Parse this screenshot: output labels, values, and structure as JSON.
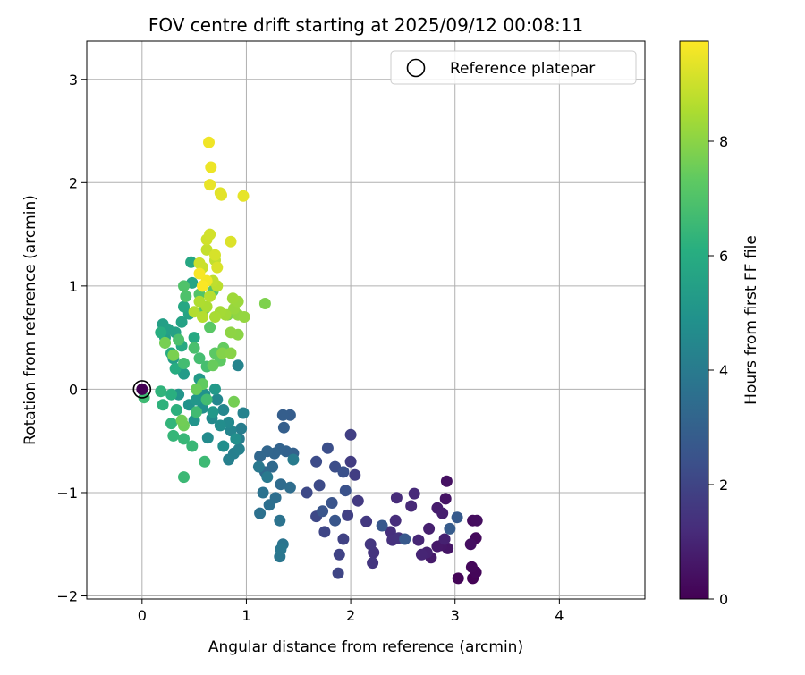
{
  "chart_data": {
    "type": "scatter",
    "title": "FOV centre drift starting at 2025/09/12 00:08:11",
    "xlabel": "Angular distance from reference (arcmin)",
    "ylabel": "Rotation from reference (arcmin)",
    "xlim": [
      -0.53,
      4.82
    ],
    "ylim": [
      -2.03,
      3.37
    ],
    "xticks": [
      0,
      1,
      2,
      3,
      4
    ],
    "yticks": [
      -2,
      -1,
      0,
      1,
      2,
      3
    ],
    "grid": true,
    "legend": {
      "placement": "top-right",
      "entries": [
        "Reference platepar"
      ]
    },
    "reference_point": {
      "x": 0,
      "y": 0,
      "label": "Reference platepar"
    },
    "colorbar": {
      "label": "Hours from first FF file",
      "colormap": "viridis",
      "range": [
        0,
        9.75
      ],
      "ticks": [
        0,
        2,
        4,
        6,
        8
      ]
    },
    "points": [
      {
        "x": 3.17,
        "y": -1.83,
        "c": 0.05
      },
      {
        "x": 3.03,
        "y": -1.83,
        "c": 0.1
      },
      {
        "x": 3.2,
        "y": -1.77,
        "c": 0.15
      },
      {
        "x": 3.16,
        "y": -1.72,
        "c": 0.2
      },
      {
        "x": 3.2,
        "y": -1.44,
        "c": 0.25
      },
      {
        "x": 3.17,
        "y": -1.27,
        "c": 0.3
      },
      {
        "x": 3.21,
        "y": -1.27,
        "c": 0.35
      },
      {
        "x": 3.15,
        "y": -1.5,
        "c": 0.4
      },
      {
        "x": 2.92,
        "y": -0.89,
        "c": 0.45
      },
      {
        "x": 2.91,
        "y": -1.06,
        "c": 0.5
      },
      {
        "x": 2.93,
        "y": -1.54,
        "c": 0.55
      },
      {
        "x": 2.87,
        "y": -1.51,
        "c": 0.6
      },
      {
        "x": 2.83,
        "y": -1.52,
        "c": 0.65
      },
      {
        "x": 2.77,
        "y": -1.63,
        "c": 0.7
      },
      {
        "x": 2.83,
        "y": -1.15,
        "c": 0.75
      },
      {
        "x": 2.88,
        "y": -1.2,
        "c": 0.8
      },
      {
        "x": 2.75,
        "y": -1.35,
        "c": 0.85
      },
      {
        "x": 2.9,
        "y": -1.45,
        "c": 0.9
      },
      {
        "x": 2.73,
        "y": -1.58,
        "c": 0.95
      },
      {
        "x": 2.68,
        "y": -1.6,
        "c": 1.0
      },
      {
        "x": 2.65,
        "y": -1.46,
        "c": 1.05
      },
      {
        "x": 2.58,
        "y": -1.13,
        "c": 1.1
      },
      {
        "x": 2.61,
        "y": -1.01,
        "c": 1.15
      },
      {
        "x": 2.44,
        "y": -1.05,
        "c": 1.2
      },
      {
        "x": 2.43,
        "y": -1.27,
        "c": 1.25
      },
      {
        "x": 2.38,
        "y": -1.38,
        "c": 1.3
      },
      {
        "x": 2.4,
        "y": -1.46,
        "c": 1.35
      },
      {
        "x": 2.46,
        "y": -1.44,
        "c": 1.4
      },
      {
        "x": 2.22,
        "y": -1.58,
        "c": 1.45
      },
      {
        "x": 2.21,
        "y": -1.68,
        "c": 1.5
      },
      {
        "x": 2.19,
        "y": -1.5,
        "c": 1.55
      },
      {
        "x": 2.15,
        "y": -1.28,
        "c": 1.6
      },
      {
        "x": 2.07,
        "y": -1.08,
        "c": 1.65
      },
      {
        "x": 2.0,
        "y": -0.7,
        "c": 1.7
      },
      {
        "x": 2.04,
        "y": -0.83,
        "c": 1.75
      },
      {
        "x": 2.0,
        "y": -0.44,
        "c": 1.8
      },
      {
        "x": 1.97,
        "y": -1.22,
        "c": 1.85
      },
      {
        "x": 1.93,
        "y": -1.45,
        "c": 1.9
      },
      {
        "x": 1.89,
        "y": -1.6,
        "c": 1.95
      },
      {
        "x": 1.88,
        "y": -1.78,
        "c": 2.0
      },
      {
        "x": 1.75,
        "y": -1.38,
        "c": 2.05
      },
      {
        "x": 1.67,
        "y": -1.23,
        "c": 2.1
      },
      {
        "x": 1.58,
        "y": -1.0,
        "c": 2.15
      },
      {
        "x": 1.7,
        "y": -0.93,
        "c": 2.2
      },
      {
        "x": 1.67,
        "y": -0.7,
        "c": 2.25
      },
      {
        "x": 1.85,
        "y": -0.75,
        "c": 2.3
      },
      {
        "x": 1.78,
        "y": -0.57,
        "c": 2.35
      },
      {
        "x": 1.93,
        "y": -0.8,
        "c": 2.4
      },
      {
        "x": 1.95,
        "y": -0.98,
        "c": 2.45
      },
      {
        "x": 1.82,
        "y": -1.1,
        "c": 2.5
      },
      {
        "x": 1.73,
        "y": -1.18,
        "c": 2.55
      },
      {
        "x": 1.85,
        "y": -1.27,
        "c": 2.6
      },
      {
        "x": 2.3,
        "y": -1.32,
        "c": 2.65
      },
      {
        "x": 2.52,
        "y": -1.45,
        "c": 2.7
      },
      {
        "x": 3.02,
        "y": -1.24,
        "c": 2.75
      },
      {
        "x": 2.95,
        "y": -1.35,
        "c": 2.8
      },
      {
        "x": 1.42,
        "y": -0.25,
        "c": 2.85
      },
      {
        "x": 1.35,
        "y": -0.25,
        "c": 2.9
      },
      {
        "x": 1.36,
        "y": -0.37,
        "c": 2.95
      },
      {
        "x": 1.45,
        "y": -0.62,
        "c": 3.0
      },
      {
        "x": 1.38,
        "y": -0.6,
        "c": 3.05
      },
      {
        "x": 1.32,
        "y": -0.58,
        "c": 3.1
      },
      {
        "x": 1.27,
        "y": -0.62,
        "c": 3.15
      },
      {
        "x": 1.2,
        "y": -0.6,
        "c": 3.2
      },
      {
        "x": 1.13,
        "y": -0.65,
        "c": 3.25
      },
      {
        "x": 1.25,
        "y": -0.75,
        "c": 3.3
      },
      {
        "x": 1.18,
        "y": -0.8,
        "c": 3.35
      },
      {
        "x": 1.33,
        "y": -0.92,
        "c": 3.4
      },
      {
        "x": 1.42,
        "y": -0.95,
        "c": 3.45
      },
      {
        "x": 1.28,
        "y": -1.05,
        "c": 3.5
      },
      {
        "x": 1.22,
        "y": -1.12,
        "c": 3.55
      },
      {
        "x": 1.13,
        "y": -1.2,
        "c": 3.6
      },
      {
        "x": 1.16,
        "y": -1.0,
        "c": 3.65
      },
      {
        "x": 1.32,
        "y": -1.27,
        "c": 3.7
      },
      {
        "x": 1.35,
        "y": -1.5,
        "c": 3.75
      },
      {
        "x": 1.32,
        "y": -1.62,
        "c": 3.8
      },
      {
        "x": 1.33,
        "y": -1.55,
        "c": 3.85
      },
      {
        "x": 1.12,
        "y": -0.75,
        "c": 3.9
      },
      {
        "x": 1.2,
        "y": -0.85,
        "c": 3.95
      },
      {
        "x": 1.45,
        "y": -0.68,
        "c": 4.0
      },
      {
        "x": 0.93,
        "y": -0.48,
        "c": 4.05
      },
      {
        "x": 0.95,
        "y": -0.38,
        "c": 4.1
      },
      {
        "x": 0.88,
        "y": -0.62,
        "c": 4.15
      },
      {
        "x": 0.83,
        "y": -0.68,
        "c": 4.2
      },
      {
        "x": 0.93,
        "y": -0.58,
        "c": 4.25
      },
      {
        "x": 0.97,
        "y": -0.23,
        "c": 4.3
      },
      {
        "x": 0.92,
        "y": 0.23,
        "c": 4.35
      },
      {
        "x": 0.85,
        "y": -0.4,
        "c": 4.4
      },
      {
        "x": 0.78,
        "y": -0.2,
        "c": 4.45
      },
      {
        "x": 0.72,
        "y": -0.1,
        "c": 4.5
      },
      {
        "x": 0.83,
        "y": -0.32,
        "c": 4.55
      },
      {
        "x": 0.67,
        "y": -0.28,
        "c": 4.6
      },
      {
        "x": 0.63,
        "y": -0.47,
        "c": 4.65
      },
      {
        "x": 0.75,
        "y": -0.35,
        "c": 4.7
      },
      {
        "x": 0.78,
        "y": -0.55,
        "c": 4.75
      },
      {
        "x": 0.9,
        "y": -0.48,
        "c": 4.8
      },
      {
        "x": 0.58,
        "y": -0.18,
        "c": 4.85
      },
      {
        "x": 0.6,
        "y": -0.05,
        "c": 4.9
      },
      {
        "x": 0.45,
        "y": -0.15,
        "c": 4.95
      },
      {
        "x": 0.5,
        "y": -0.3,
        "c": 5.0
      },
      {
        "x": 0.35,
        "y": -0.05,
        "c": 5.05
      },
      {
        "x": 0.52,
        "y": -0.1,
        "c": 5.1
      },
      {
        "x": 0.68,
        "y": -0.22,
        "c": 5.15
      },
      {
        "x": 0.7,
        "y": 0.0,
        "c": 5.2
      },
      {
        "x": 0.55,
        "y": 0.1,
        "c": 5.25
      },
      {
        "x": 0.4,
        "y": 0.15,
        "c": 5.3
      },
      {
        "x": 0.3,
        "y": 0.3,
        "c": 5.35
      },
      {
        "x": 0.22,
        "y": 0.5,
        "c": 5.4
      },
      {
        "x": 0.2,
        "y": 0.63,
        "c": 5.45
      },
      {
        "x": 0.25,
        "y": 0.58,
        "c": 5.5
      },
      {
        "x": 0.32,
        "y": 0.55,
        "c": 5.55
      },
      {
        "x": 0.38,
        "y": 0.65,
        "c": 5.6
      },
      {
        "x": 0.45,
        "y": 0.73,
        "c": 5.65
      },
      {
        "x": 0.48,
        "y": 1.03,
        "c": 5.7
      },
      {
        "x": 0.47,
        "y": 1.23,
        "c": 5.75
      },
      {
        "x": 0.4,
        "y": 0.8,
        "c": 5.8
      },
      {
        "x": 0.5,
        "y": 0.5,
        "c": 5.85
      },
      {
        "x": 0.38,
        "y": 0.42,
        "c": 5.9
      },
      {
        "x": 0.28,
        "y": 0.35,
        "c": 5.95
      },
      {
        "x": 0.32,
        "y": 0.2,
        "c": 6.0
      },
      {
        "x": 0.18,
        "y": 0.55,
        "c": 6.05
      },
      {
        "x": 0.22,
        "y": 0.45,
        "c": 6.1
      },
      {
        "x": 0.28,
        "y": -0.05,
        "c": 6.15
      },
      {
        "x": 0.33,
        "y": -0.2,
        "c": 6.2
      },
      {
        "x": 0.2,
        "y": -0.15,
        "c": 6.25
      },
      {
        "x": 0.18,
        "y": -0.02,
        "c": 6.3
      },
      {
        "x": 0.28,
        "y": -0.33,
        "c": 6.35
      },
      {
        "x": 0.3,
        "y": -0.45,
        "c": 6.4
      },
      {
        "x": 0.4,
        "y": -0.48,
        "c": 6.45
      },
      {
        "x": 0.48,
        "y": -0.55,
        "c": 6.5
      },
      {
        "x": 0.4,
        "y": -0.85,
        "c": 6.55
      },
      {
        "x": 0.6,
        "y": -0.7,
        "c": 6.6
      },
      {
        "x": 0.02,
        "y": -0.08,
        "c": 6.62
      },
      {
        "x": 0.52,
        "y": -0.22,
        "c": 6.65
      },
      {
        "x": 0.62,
        "y": -0.1,
        "c": 6.7
      },
      {
        "x": 0.4,
        "y": 0.25,
        "c": 6.72
      },
      {
        "x": 0.55,
        "y": 0.3,
        "c": 6.75
      },
      {
        "x": 0.62,
        "y": 0.22,
        "c": 6.8
      },
      {
        "x": 0.5,
        "y": 0.4,
        "c": 6.85
      },
      {
        "x": 0.35,
        "y": 0.48,
        "c": 6.9
      },
      {
        "x": 0.42,
        "y": 0.9,
        "c": 6.95
      },
      {
        "x": 0.4,
        "y": 1.0,
        "c": 7.0
      },
      {
        "x": 0.55,
        "y": 0.92,
        "c": 7.05
      },
      {
        "x": 0.6,
        "y": 0.78,
        "c": 7.1
      },
      {
        "x": 0.68,
        "y": 0.95,
        "c": 7.15
      },
      {
        "x": 0.65,
        "y": 0.6,
        "c": 7.2
      },
      {
        "x": 0.7,
        "y": 0.35,
        "c": 7.25
      },
      {
        "x": 0.75,
        "y": 0.28,
        "c": 7.3
      },
      {
        "x": 0.58,
        "y": 0.05,
        "c": 7.35
      },
      {
        "x": 0.78,
        "y": 0.4,
        "c": 7.4
      },
      {
        "x": 0.68,
        "y": 0.23,
        "c": 7.45
      },
      {
        "x": 0.52,
        "y": 0.0,
        "c": 7.5
      },
      {
        "x": 0.4,
        "y": -0.35,
        "c": 7.55
      },
      {
        "x": 0.38,
        "y": -0.3,
        "c": 7.6
      },
      {
        "x": 0.88,
        "y": -0.12,
        "c": 7.65
      },
      {
        "x": 0.22,
        "y": 0.45,
        "c": 7.7
      },
      {
        "x": 0.3,
        "y": 0.33,
        "c": 7.75
      },
      {
        "x": 1.18,
        "y": 0.83,
        "c": 7.8
      },
      {
        "x": 0.82,
        "y": 0.72,
        "c": 7.85
      },
      {
        "x": 0.77,
        "y": 0.35,
        "c": 7.9
      },
      {
        "x": 0.85,
        "y": 0.35,
        "c": 7.95
      },
      {
        "x": 0.92,
        "y": 0.53,
        "c": 8.0
      },
      {
        "x": 0.85,
        "y": 0.55,
        "c": 8.05
      },
      {
        "x": 0.92,
        "y": 0.72,
        "c": 8.1
      },
      {
        "x": 0.98,
        "y": 0.7,
        "c": 8.15
      },
      {
        "x": 0.88,
        "y": 0.78,
        "c": 8.2
      },
      {
        "x": 0.92,
        "y": 0.85,
        "c": 8.25
      },
      {
        "x": 0.87,
        "y": 0.88,
        "c": 8.3
      },
      {
        "x": 0.8,
        "y": 0.72,
        "c": 8.35
      },
      {
        "x": 0.75,
        "y": 0.75,
        "c": 8.4
      },
      {
        "x": 0.7,
        "y": 0.7,
        "c": 8.45
      },
      {
        "x": 0.62,
        "y": 0.8,
        "c": 8.5
      },
      {
        "x": 0.55,
        "y": 0.85,
        "c": 8.55
      },
      {
        "x": 0.5,
        "y": 0.75,
        "c": 8.6
      },
      {
        "x": 0.58,
        "y": 0.7,
        "c": 8.65
      },
      {
        "x": 0.65,
        "y": 0.9,
        "c": 8.7
      },
      {
        "x": 0.72,
        "y": 1.0,
        "c": 8.75
      },
      {
        "x": 0.68,
        "y": 1.05,
        "c": 8.8
      },
      {
        "x": 0.7,
        "y": 1.25,
        "c": 8.85
      },
      {
        "x": 0.62,
        "y": 1.35,
        "c": 8.9
      },
      {
        "x": 0.58,
        "y": 1.18,
        "c": 8.95
      },
      {
        "x": 0.55,
        "y": 1.22,
        "c": 9.0
      },
      {
        "x": 0.62,
        "y": 1.45,
        "c": 9.05
      },
      {
        "x": 0.65,
        "y": 1.5,
        "c": 9.1
      },
      {
        "x": 0.7,
        "y": 1.3,
        "c": 9.15
      },
      {
        "x": 0.72,
        "y": 1.18,
        "c": 9.2
      },
      {
        "x": 0.85,
        "y": 1.43,
        "c": 9.25
      },
      {
        "x": 0.75,
        "y": 1.9,
        "c": 9.3
      },
      {
        "x": 0.76,
        "y": 1.88,
        "c": 9.35
      },
      {
        "x": 0.97,
        "y": 1.87,
        "c": 9.4
      },
      {
        "x": 0.65,
        "y": 1.98,
        "c": 9.45
      },
      {
        "x": 0.66,
        "y": 2.15,
        "c": 9.5
      },
      {
        "x": 0.64,
        "y": 2.39,
        "c": 9.55
      },
      {
        "x": 0.62,
        "y": 1.05,
        "c": 9.6
      },
      {
        "x": 0.55,
        "y": 1.12,
        "c": 9.65
      },
      {
        "x": 0.58,
        "y": 1.0,
        "c": 9.7
      }
    ]
  }
}
